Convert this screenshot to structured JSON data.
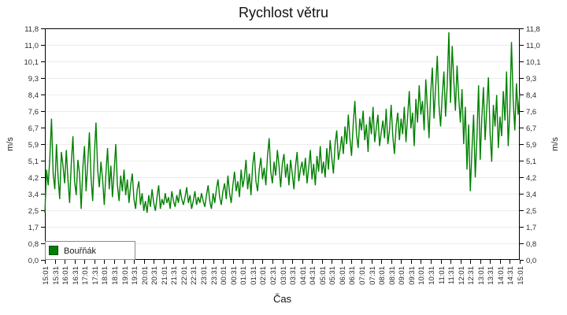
{
  "title": "Rychlost větru",
  "axes": {
    "x_label": "Čas",
    "y_left_label": "m/s",
    "y_right_label": "m/s",
    "y_ticks": [
      "0,0",
      "0,8",
      "1,7",
      "2,5",
      "3,4",
      "4,2",
      "5,1",
      "5,9",
      "6,7",
      "7,6",
      "8,4",
      "9,3",
      "10,1",
      "11,0",
      "11,8"
    ],
    "x_ticks": [
      "15:01",
      "15:31",
      "16:01",
      "16:31",
      "17:01",
      "17:31",
      "18:01",
      "18:31",
      "19:01",
      "19:31",
      "20:01",
      "20:31",
      "21:01",
      "21:31",
      "22:01",
      "22:31",
      "23:01",
      "23:31",
      "00:01",
      "00:31",
      "01:01",
      "01:31",
      "02:01",
      "02:31",
      "03:01",
      "03:31",
      "04:01",
      "04:31",
      "05:01",
      "05:31",
      "06:01",
      "06:31",
      "07:01",
      "07:31",
      "08:01",
      "08:31",
      "09:01",
      "09:31",
      "10:01",
      "10:31",
      "11:01",
      "11:31",
      "12:01",
      "12:31",
      "13:01",
      "13:31",
      "14:01",
      "14:31",
      "15:01"
    ]
  },
  "legend": {
    "label": "Bouřňák",
    "swatch_color": "#008000"
  },
  "colors": {
    "line": "#008000",
    "grid": "#ececec",
    "axis": "#000000",
    "text": "#2e2e2e",
    "legend_border": "#8c8c8c"
  },
  "chart_data": {
    "type": "line",
    "title": "Rychlost větru",
    "xlabel": "Čas",
    "ylabel": "m/s",
    "x_start": "15:01",
    "x_end": "15:01",
    "sample_interval_min": 5,
    "ylim": [
      0,
      11.8
    ],
    "y_tick_count": 15,
    "grid": "horizontal",
    "legend_position": "bottom-left",
    "series": [
      {
        "name": "Bouřňák",
        "color": "#008000",
        "values": [
          2.4,
          4.6,
          3.8,
          5.2,
          7.2,
          4.4,
          3.6,
          5.9,
          4.2,
          3.1,
          5.5,
          4.8,
          3.9,
          5.6,
          4.1,
          2.9,
          4.9,
          6.3,
          4.0,
          3.3,
          5.1,
          4.4,
          2.6,
          4.7,
          5.8,
          3.5,
          4.9,
          6.5,
          4.2,
          3.0,
          5.3,
          7.0,
          4.6,
          3.7,
          5.0,
          4.1,
          2.8,
          4.4,
          5.7,
          3.6,
          4.8,
          3.2,
          4.5,
          5.9,
          3.8,
          3.0,
          4.3,
          3.5,
          4.6,
          3.3,
          4.1,
          2.9,
          3.8,
          4.4,
          3.1,
          2.6,
          3.6,
          4.0,
          2.8,
          3.4,
          2.5,
          3.0,
          2.4,
          3.3,
          2.7,
          3.6,
          2.9,
          2.5,
          3.2,
          3.8,
          2.6,
          3.1,
          2.8,
          3.4,
          2.9,
          3.2,
          2.6,
          3.5,
          3.0,
          2.7,
          3.3,
          2.9,
          3.6,
          3.1,
          2.8,
          3.2,
          3.7,
          2.9,
          3.3,
          2.6,
          3.0,
          3.5,
          2.8,
          3.2,
          2.9,
          3.4,
          3.0,
          2.7,
          3.3,
          3.8,
          3.0,
          2.6,
          3.4,
          2.9,
          3.6,
          4.1,
          3.2,
          2.8,
          3.5,
          3.9,
          3.1,
          4.3,
          3.4,
          2.9,
          3.8,
          4.5,
          3.5,
          4.0,
          3.2,
          4.6,
          3.7,
          4.2,
          5.1,
          3.6,
          4.4,
          3.3,
          4.8,
          5.5,
          4.0,
          3.5,
          4.6,
          5.2,
          4.1,
          4.7,
          3.8,
          5.3,
          6.2,
          4.5,
          3.9,
          5.0,
          4.3,
          5.6,
          4.8,
          3.7,
          4.9,
          5.4,
          4.2,
          4.9,
          3.8,
          5.1,
          4.4,
          3.6,
          4.8,
          5.5,
          4.0,
          4.6,
          5.0,
          4.3,
          5.2,
          3.9,
          4.7,
          5.6,
          4.1,
          4.9,
          3.8,
          5.3,
          4.5,
          5.8,
          4.4,
          5.0,
          4.2,
          5.7,
          4.6,
          6.1,
          5.2,
          4.4,
          5.9,
          6.6,
          5.1,
          5.6,
          6.3,
          5.4,
          6.8,
          5.9,
          7.4,
          6.2,
          5.3,
          6.9,
          8.1,
          6.4,
          5.7,
          7.2,
          6.6,
          7.6,
          6.1,
          6.9,
          5.5,
          7.3,
          6.4,
          7.8,
          6.0,
          6.7,
          7.4,
          5.8,
          6.5,
          7.1,
          6.2,
          7.7,
          5.9,
          6.6,
          7.9,
          6.3,
          5.4,
          6.8,
          7.5,
          6.1,
          7.2,
          6.4,
          7.8,
          6.0,
          7.3,
          8.6,
          6.7,
          7.5,
          5.8,
          8.2,
          7.0,
          8.9,
          7.4,
          8.1,
          6.6,
          9.2,
          7.7,
          6.2,
          8.5,
          9.8,
          7.2,
          8.8,
          10.4,
          7.9,
          6.8,
          8.4,
          9.6,
          7.3,
          8.9,
          11.6,
          8.0,
          10.9,
          9.1,
          7.6,
          9.9,
          8.3,
          7.0,
          8.7,
          5.9,
          7.8,
          4.6,
          6.9,
          3.5,
          5.6,
          7.4,
          4.2,
          6.2,
          8.9,
          5.1,
          7.2,
          8.8,
          6.1,
          7.7,
          9.3,
          6.5,
          5.0,
          7.9,
          6.8,
          8.4,
          5.7,
          7.3,
          6.3,
          8.6,
          7.1,
          9.6,
          5.8,
          7.6,
          11.1,
          8.2,
          6.6,
          9.0,
          7.4,
          8.5
        ]
      }
    ]
  }
}
